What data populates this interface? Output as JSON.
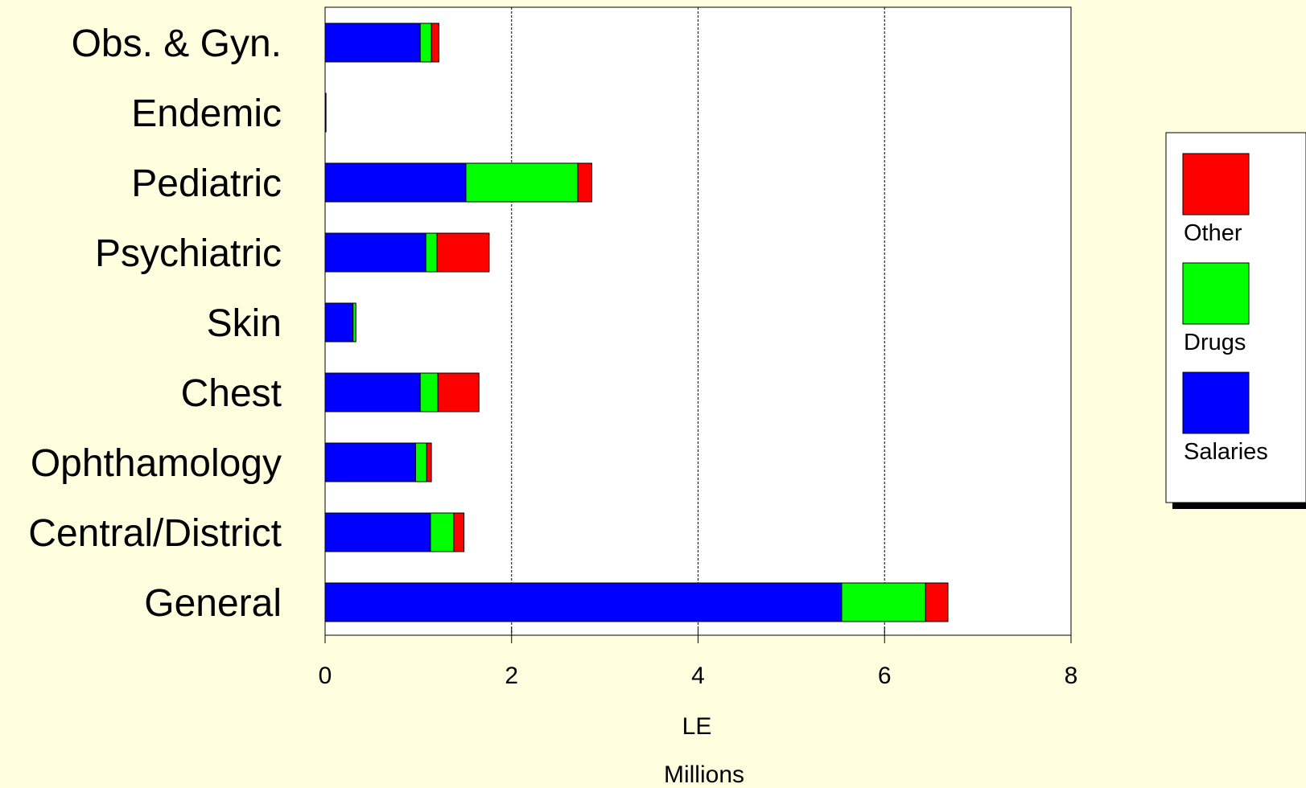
{
  "chart_data": {
    "type": "bar",
    "orientation": "horizontal",
    "stacked": true,
    "categories": [
      "Obs. & Gyn.",
      "Endemic",
      "Pediatric",
      "Psychiatric",
      "Skin",
      "Chest",
      "Ophthamology",
      "Central/District",
      "General"
    ],
    "series": [
      {
        "name": "Salaries",
        "color": "#0000ff",
        "values": [
          1.02,
          0.01,
          1.51,
          1.08,
          0.3,
          1.02,
          0.97,
          1.13,
          5.54
        ]
      },
      {
        "name": "Drugs",
        "color": "#00ff00",
        "values": [
          0.12,
          0.0,
          1.2,
          0.12,
          0.03,
          0.19,
          0.12,
          0.25,
          0.9
        ]
      },
      {
        "name": "Other",
        "color": "#ff0000",
        "values": [
          0.08,
          0.0,
          0.15,
          0.56,
          0.0,
          0.44,
          0.05,
          0.11,
          0.24
        ]
      }
    ],
    "xlabel": "LE",
    "xlabel_sub": "Millions",
    "xlim": [
      0,
      8
    ],
    "xticks": [
      0,
      2,
      4,
      6,
      8
    ],
    "xtick_labels": [
      "0",
      "2",
      "4",
      "6",
      "8"
    ],
    "grid": "vertical-dashed",
    "legend_position": "right",
    "legend_order": [
      "Other",
      "Drugs",
      "Salaries"
    ]
  },
  "colors": {
    "background": "#ffffe0",
    "plot_background": "#ffffff"
  }
}
